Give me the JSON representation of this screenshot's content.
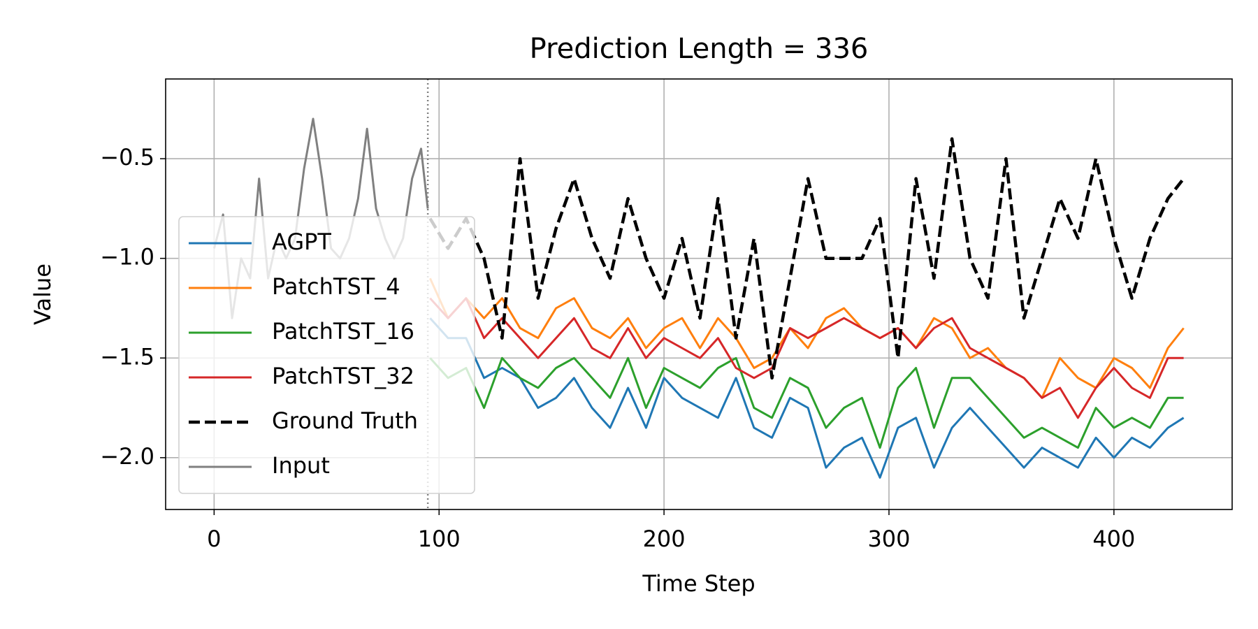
{
  "chart_data": {
    "type": "line",
    "title": "Prediction Length = 336",
    "xlabel": "Time Step",
    "ylabel": "Value",
    "x": [
      96,
      104,
      112,
      120,
      128,
      136,
      144,
      152,
      160,
      168,
      176,
      184,
      192,
      200,
      208,
      216,
      224,
      232,
      240,
      248,
      256,
      264,
      272,
      280,
      288,
      296,
      304,
      312,
      320,
      328,
      336,
      344,
      352,
      360,
      368,
      376,
      384,
      392,
      400,
      408,
      416,
      424,
      431
    ],
    "series": [
      {
        "name": "AGPT",
        "color": "#1f77b4",
        "values": [
          -1.3,
          -1.4,
          -1.4,
          -1.6,
          -1.55,
          -1.6,
          -1.75,
          -1.7,
          -1.6,
          -1.75,
          -1.85,
          -1.65,
          -1.85,
          -1.6,
          -1.7,
          -1.75,
          -1.8,
          -1.6,
          -1.85,
          -1.9,
          -1.7,
          -1.75,
          -2.05,
          -1.95,
          -1.9,
          -2.1,
          -1.85,
          -1.8,
          -2.05,
          -1.85,
          -1.75,
          -1.85,
          -1.95,
          -2.05,
          -1.95,
          -2.0,
          -2.05,
          -1.9,
          -2.0,
          -1.9,
          -1.95,
          -1.85,
          -1.8
        ]
      },
      {
        "name": "PatchTST_4",
        "color": "#ff7f0e",
        "values": [
          -1.1,
          -1.3,
          -1.2,
          -1.3,
          -1.2,
          -1.35,
          -1.4,
          -1.25,
          -1.2,
          -1.35,
          -1.4,
          -1.3,
          -1.45,
          -1.35,
          -1.3,
          -1.45,
          -1.3,
          -1.4,
          -1.55,
          -1.5,
          -1.35,
          -1.45,
          -1.3,
          -1.25,
          -1.35,
          -1.4,
          -1.35,
          -1.45,
          -1.3,
          -1.35,
          -1.5,
          -1.45,
          -1.55,
          -1.6,
          -1.7,
          -1.5,
          -1.6,
          -1.65,
          -1.5,
          -1.55,
          -1.65,
          -1.45,
          -1.35
        ]
      },
      {
        "name": "PatchTST_16",
        "color": "#2ca02c",
        "values": [
          -1.5,
          -1.6,
          -1.55,
          -1.75,
          -1.5,
          -1.6,
          -1.65,
          -1.55,
          -1.5,
          -1.6,
          -1.7,
          -1.5,
          -1.75,
          -1.55,
          -1.6,
          -1.65,
          -1.55,
          -1.5,
          -1.75,
          -1.8,
          -1.6,
          -1.65,
          -1.85,
          -1.75,
          -1.7,
          -1.95,
          -1.65,
          -1.55,
          -1.85,
          -1.6,
          -1.6,
          -1.7,
          -1.8,
          -1.9,
          -1.85,
          -1.9,
          -1.95,
          -1.75,
          -1.85,
          -1.8,
          -1.85,
          -1.7,
          -1.7
        ]
      },
      {
        "name": "PatchTST_32",
        "color": "#d62728",
        "values": [
          -1.2,
          -1.3,
          -1.2,
          -1.4,
          -1.3,
          -1.4,
          -1.5,
          -1.4,
          -1.3,
          -1.45,
          -1.5,
          -1.35,
          -1.5,
          -1.4,
          -1.45,
          -1.5,
          -1.4,
          -1.55,
          -1.6,
          -1.55,
          -1.35,
          -1.4,
          -1.35,
          -1.3,
          -1.35,
          -1.4,
          -1.35,
          -1.45,
          -1.35,
          -1.3,
          -1.45,
          -1.5,
          -1.55,
          -1.6,
          -1.7,
          -1.65,
          -1.8,
          -1.65,
          -1.55,
          -1.65,
          -1.7,
          -1.5,
          -1.5
        ]
      },
      {
        "name": "Ground Truth",
        "color": "#000000",
        "dashed": true,
        "values": [
          -0.8,
          -0.95,
          -0.8,
          -1.0,
          -1.4,
          -0.5,
          -1.2,
          -0.85,
          -0.6,
          -0.9,
          -1.1,
          -0.7,
          -1.0,
          -1.2,
          -0.9,
          -1.3,
          -0.7,
          -1.4,
          -0.9,
          -1.6,
          -1.1,
          -0.6,
          -1.0,
          -1.0,
          -1.0,
          -0.8,
          -1.5,
          -0.6,
          -1.1,
          -0.4,
          -1.0,
          -1.2,
          -0.5,
          -1.3,
          -1.0,
          -0.7,
          -0.9,
          -0.5,
          -0.9,
          -1.2,
          -0.9,
          -0.7,
          -0.6
        ]
      },
      {
        "name": "Input",
        "color": "#808080",
        "x": [
          0,
          4,
          8,
          12,
          16,
          20,
          24,
          28,
          32,
          36,
          40,
          44,
          48,
          52,
          56,
          60,
          64,
          68,
          72,
          76,
          80,
          84,
          88,
          92,
          95
        ],
        "values": [
          -0.95,
          -0.78,
          -1.3,
          -1.0,
          -1.1,
          -0.6,
          -1.1,
          -0.9,
          -1.0,
          -0.9,
          -0.55,
          -0.3,
          -0.6,
          -0.95,
          -1.0,
          -0.9,
          -0.7,
          -0.35,
          -0.75,
          -0.9,
          -1.0,
          -0.9,
          -0.6,
          -0.45,
          -0.75
        ]
      }
    ],
    "divider_x": 95,
    "xlim": [
      -21.55,
      452.55
    ],
    "ylim": [
      -2.26,
      -0.1
    ],
    "xticks": [
      0,
      100,
      200,
      300,
      400
    ],
    "yticks": [
      {
        "value": -2,
        "label": "−2.0"
      },
      {
        "value": -1.5,
        "label": "−1.5"
      },
      {
        "value": -1,
        "label": "−1.0"
      },
      {
        "value": -0.5,
        "label": "−0.5"
      }
    ],
    "grid": true,
    "legend": "lower left"
  }
}
